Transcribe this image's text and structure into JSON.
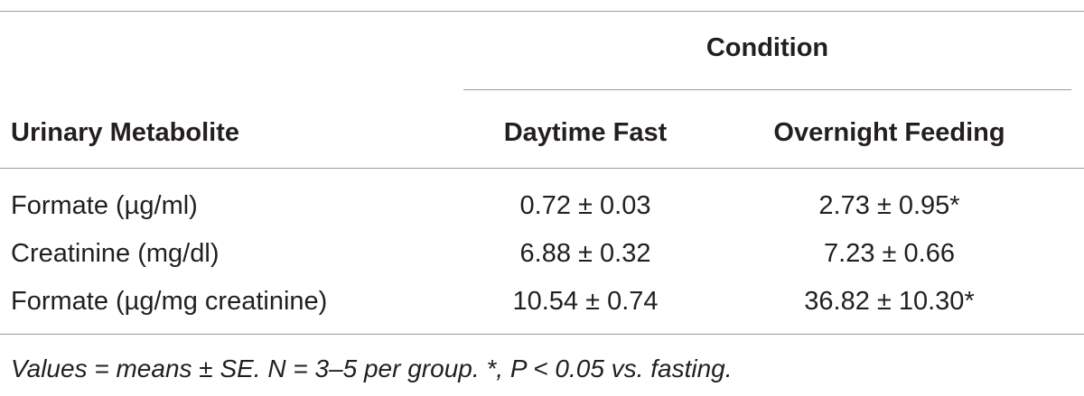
{
  "table": {
    "condition_header": "Condition",
    "columns": [
      "Urinary Metabolite",
      "Daytime Fast",
      "Overnight Feeding"
    ],
    "rows": [
      {
        "metabolite": "Formate (µg/ml)",
        "daytime_fast": "0.72 ± 0.03",
        "overnight_feeding": "2.73 ± 0.95*"
      },
      {
        "metabolite": "Creatinine (mg/dl)",
        "daytime_fast": "6.88 ± 0.32",
        "overnight_feeding": "7.23 ± 0.66"
      },
      {
        "metabolite": "Formate (µg/mg creatinine)",
        "daytime_fast": "10.54 ± 0.74",
        "overnight_feeding": "36.82 ± 10.30*"
      }
    ],
    "footnote": "Values = means ± SE. N = 3–5 per group. *, P < 0.05 vs. fasting."
  }
}
